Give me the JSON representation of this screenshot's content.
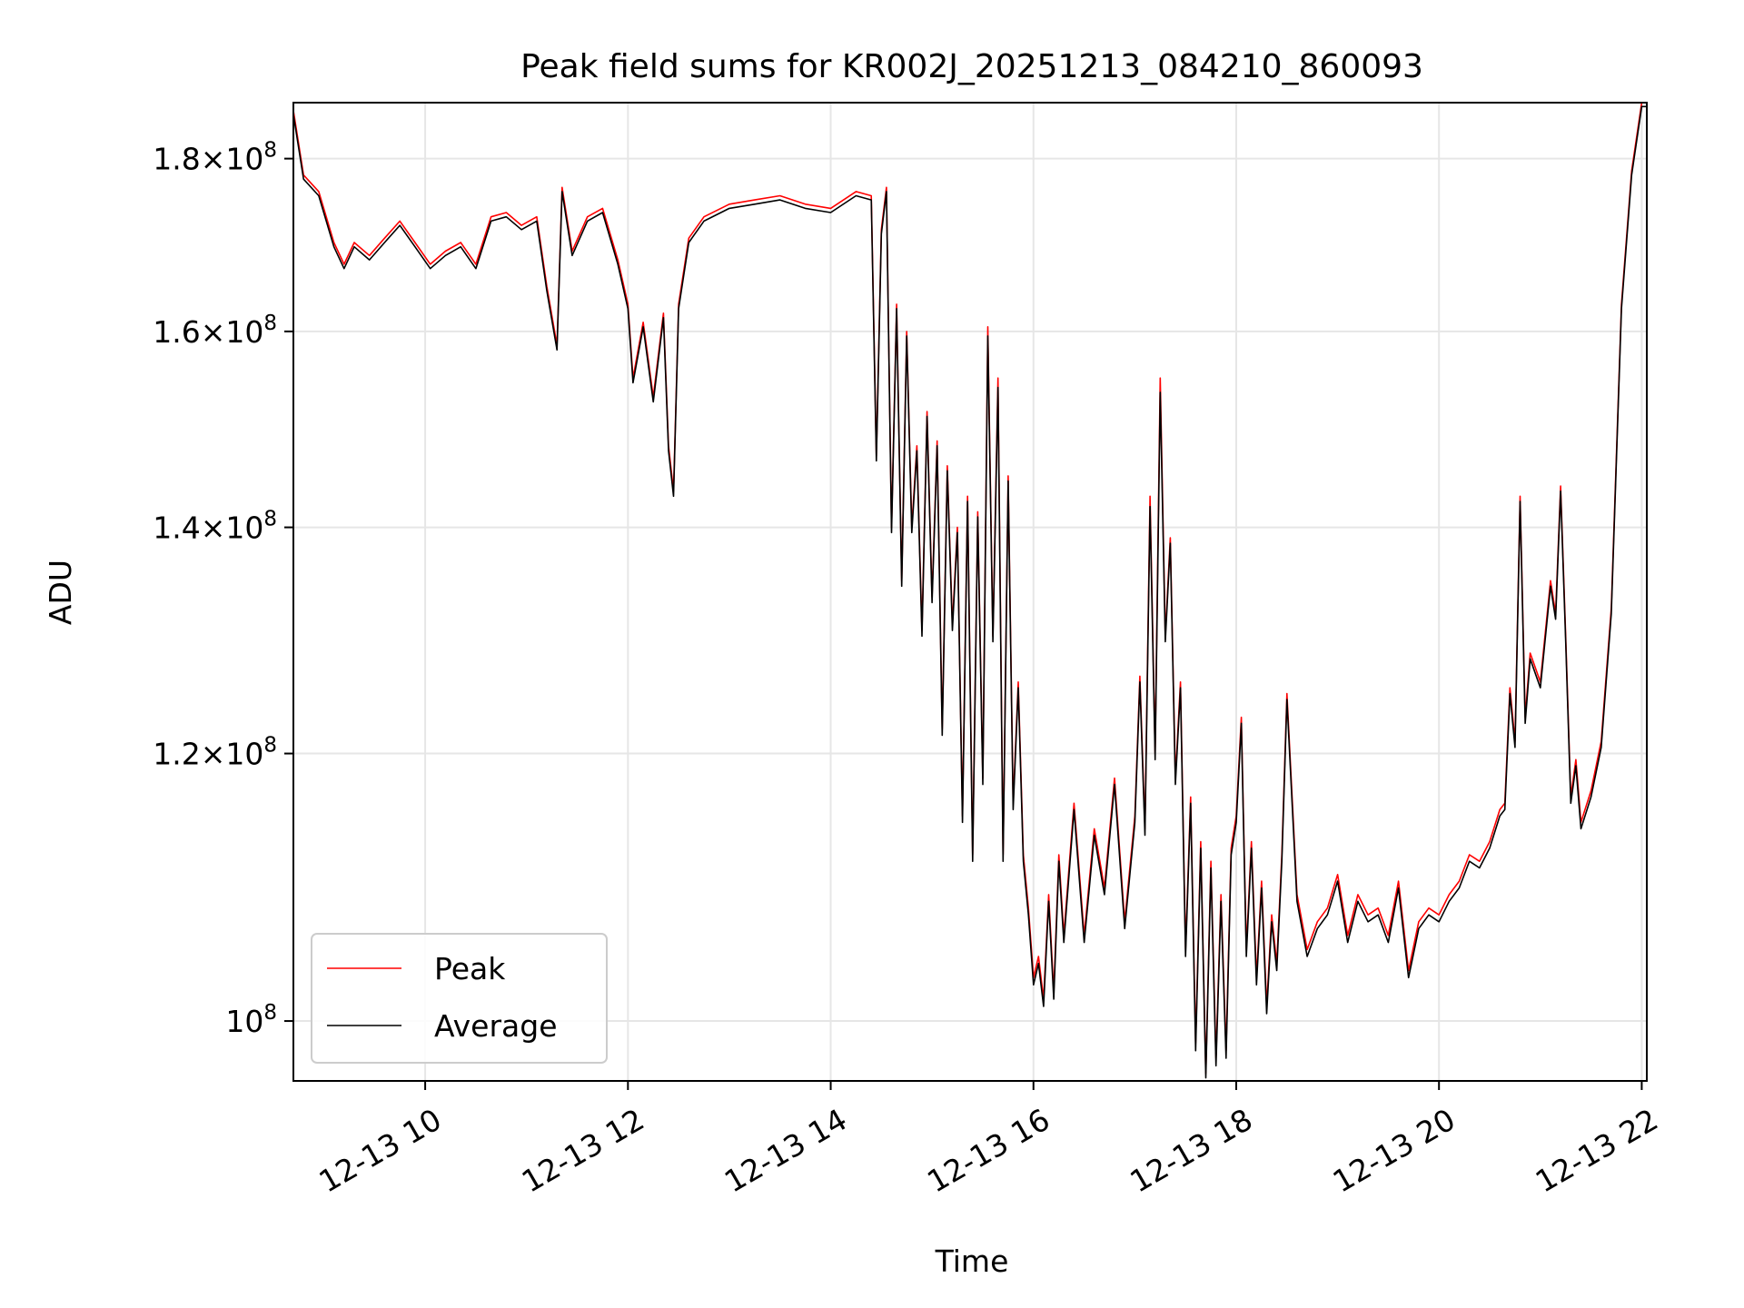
{
  "chart_data": {
    "type": "line",
    "title": "Peak field sums for KR002J_20251213_084210_860093",
    "xlabel": "Time",
    "ylabel": "ADU",
    "yscale": "log",
    "xlim": [
      8.7,
      22.05
    ],
    "ylim": [
      96000000,
      187000000
    ],
    "x_unit": "hours on 2025-12-13",
    "x_ticks": [
      {
        "value": 10,
        "label": "12-13 10"
      },
      {
        "value": 12,
        "label": "12-13 12"
      },
      {
        "value": 14,
        "label": "12-13 14"
      },
      {
        "value": 16,
        "label": "12-13 16"
      },
      {
        "value": 18,
        "label": "12-13 18"
      },
      {
        "value": 20,
        "label": "12-13 20"
      },
      {
        "value": 22,
        "label": "12-13 22"
      }
    ],
    "y_ticks": [
      {
        "value": 100000000,
        "mantissa": "",
        "exponent": "8"
      },
      {
        "value": 120000000,
        "mantissa": "1.2",
        "exponent": "8"
      },
      {
        "value": 140000000,
        "mantissa": "1.4",
        "exponent": "8"
      },
      {
        "value": 160000000,
        "mantissa": "1.6",
        "exponent": "8"
      },
      {
        "value": 180000000,
        "mantissa": "1.8",
        "exponent": "8"
      }
    ],
    "grid": true,
    "legend": {
      "position": "lower-left",
      "entries": [
        "Peak",
        "Average"
      ]
    },
    "colors": {
      "peak": "#ff0000",
      "average": "#000000",
      "grid": "#e6e6e6"
    },
    "x": [
      8.7,
      8.8,
      8.95,
      9.1,
      9.2,
      9.3,
      9.45,
      9.6,
      9.75,
      9.9,
      10.05,
      10.2,
      10.35,
      10.5,
      10.65,
      10.8,
      10.95,
      11.1,
      11.2,
      11.3,
      11.35,
      11.45,
      11.6,
      11.75,
      11.9,
      12.0,
      12.05,
      12.15,
      12.25,
      12.35,
      12.4,
      12.45,
      12.5,
      12.6,
      12.75,
      13.0,
      13.25,
      13.5,
      13.75,
      14.0,
      14.25,
      14.4,
      14.45,
      14.5,
      14.55,
      14.6,
      14.65,
      14.7,
      14.75,
      14.8,
      14.85,
      14.9,
      14.95,
      15.0,
      15.05,
      15.1,
      15.15,
      15.2,
      15.25,
      15.3,
      15.35,
      15.4,
      15.45,
      15.5,
      15.55,
      15.6,
      15.65,
      15.7,
      15.75,
      15.8,
      15.85,
      15.9,
      15.95,
      16.0,
      16.05,
      16.1,
      16.15,
      16.2,
      16.25,
      16.3,
      16.4,
      16.5,
      16.6,
      16.7,
      16.8,
      16.9,
      17.0,
      17.05,
      17.1,
      17.15,
      17.2,
      17.25,
      17.3,
      17.35,
      17.4,
      17.45,
      17.5,
      17.55,
      17.6,
      17.65,
      17.7,
      17.75,
      17.8,
      17.85,
      17.9,
      17.95,
      18.0,
      18.05,
      18.1,
      18.15,
      18.2,
      18.25,
      18.3,
      18.35,
      18.4,
      18.45,
      18.5,
      18.6,
      18.7,
      18.8,
      18.9,
      19.0,
      19.1,
      19.2,
      19.3,
      19.4,
      19.5,
      19.6,
      19.7,
      19.8,
      19.9,
      20.0,
      20.1,
      20.2,
      20.3,
      20.4,
      20.5,
      20.6,
      20.65,
      20.7,
      20.75,
      20.8,
      20.85,
      20.9,
      21.0,
      21.1,
      21.15,
      21.2,
      21.25,
      21.3,
      21.35,
      21.4,
      21.5,
      21.6,
      21.7,
      21.8,
      21.9,
      22.0,
      22.05
    ],
    "series": [
      {
        "name": "Peak",
        "values": [
          186000000,
          178000000,
          176000000,
          170000000,
          167500000,
          170000000,
          168500000,
          170500000,
          172500000,
          170000000,
          167500000,
          169000000,
          170000000,
          167500000,
          173000000,
          173500000,
          172000000,
          173000000,
          165000000,
          158500000,
          176500000,
          169000000,
          173000000,
          174000000,
          168000000,
          163000000,
          155000000,
          161000000,
          153000000,
          162000000,
          148000000,
          143500000,
          163000000,
          170500000,
          173000000,
          174500000,
          175000000,
          175500000,
          174500000,
          174000000,
          176000000,
          175500000,
          147000000,
          171500000,
          176500000,
          140000000,
          163000000,
          135000000,
          160000000,
          140000000,
          148000000,
          130500000,
          151500000,
          133500000,
          148500000,
          122000000,
          146000000,
          131000000,
          140000000,
          115000000,
          143000000,
          112000000,
          141500000,
          118000000,
          160500000,
          130000000,
          155000000,
          112000000,
          145000000,
          116000000,
          126000000,
          112000000,
          108000000,
          103000000,
          104500000,
          101500000,
          109000000,
          102000000,
          112000000,
          106000000,
          116000000,
          106000000,
          114000000,
          109500000,
          118000000,
          107000000,
          115000000,
          126500000,
          114000000,
          143000000,
          120000000,
          155000000,
          130000000,
          139000000,
          118000000,
          126000000,
          105000000,
          116500000,
          98500000,
          113000000,
          96500000,
          111500000,
          97500000,
          109000000,
          98000000,
          112500000,
          115000000,
          123000000,
          105000000,
          113000000,
          103000000,
          110000000,
          101000000,
          107500000,
          104000000,
          112000000,
          125000000,
          109000000,
          105000000,
          107000000,
          108000000,
          110500000,
          106000000,
          109000000,
          107500000,
          108000000,
          106000000,
          110000000,
          103500000,
          107000000,
          108000000,
          107500000,
          109000000,
          110000000,
          112000000,
          111500000,
          113000000,
          115500000,
          116000000,
          125500000,
          121000000,
          143000000,
          123000000,
          128500000,
          126000000,
          135000000,
          132000000,
          144000000,
          130000000,
          116500000,
          119500000,
          114500000,
          117000000,
          121000000,
          132500000,
          163000000,
          178500000,
          187000000,
          187000000
        ]
      },
      {
        "name": "Average",
        "values": [
          185500000,
          177500000,
          175500000,
          169500000,
          167000000,
          169500000,
          168000000,
          170000000,
          172000000,
          169500000,
          167000000,
          168500000,
          169500000,
          167000000,
          172500000,
          173000000,
          171500000,
          172500000,
          164500000,
          158000000,
          176000000,
          168500000,
          172500000,
          173500000,
          167500000,
          162500000,
          154500000,
          160500000,
          152500000,
          161500000,
          147500000,
          143000000,
          162500000,
          170000000,
          172500000,
          174000000,
          174500000,
          175000000,
          174000000,
          173500000,
          175500000,
          175000000,
          146500000,
          171000000,
          176000000,
          139500000,
          162500000,
          134500000,
          159500000,
          139500000,
          147500000,
          130000000,
          151000000,
          133000000,
          148000000,
          121500000,
          145500000,
          130500000,
          139500000,
          114500000,
          142500000,
          111500000,
          141000000,
          117500000,
          159500000,
          129500000,
          154000000,
          111500000,
          144500000,
          115500000,
          125500000,
          111500000,
          107500000,
          102500000,
          104000000,
          101000000,
          108500000,
          101500000,
          111500000,
          105500000,
          115500000,
          105500000,
          113500000,
          109000000,
          117500000,
          106500000,
          114500000,
          126000000,
          113500000,
          142000000,
          119500000,
          153500000,
          129500000,
          138500000,
          117500000,
          125500000,
          104500000,
          116000000,
          98000000,
          112500000,
          96200000,
          111000000,
          97000000,
          108500000,
          97500000,
          112000000,
          114500000,
          122500000,
          104500000,
          112500000,
          102500000,
          109500000,
          100500000,
          107000000,
          103500000,
          111500000,
          124500000,
          108500000,
          104500000,
          106500000,
          107500000,
          110000000,
          105500000,
          108500000,
          107000000,
          107500000,
          105500000,
          109500000,
          103000000,
          106500000,
          107500000,
          107000000,
          108500000,
          109500000,
          111500000,
          111000000,
          112500000,
          115000000,
          115500000,
          125000000,
          120500000,
          142500000,
          122500000,
          128000000,
          125500000,
          134500000,
          131500000,
          143500000,
          129500000,
          116000000,
          119000000,
          114000000,
          116500000,
          120500000,
          132000000,
          162500000,
          178000000,
          186500000,
          186500000
        ]
      }
    ]
  }
}
